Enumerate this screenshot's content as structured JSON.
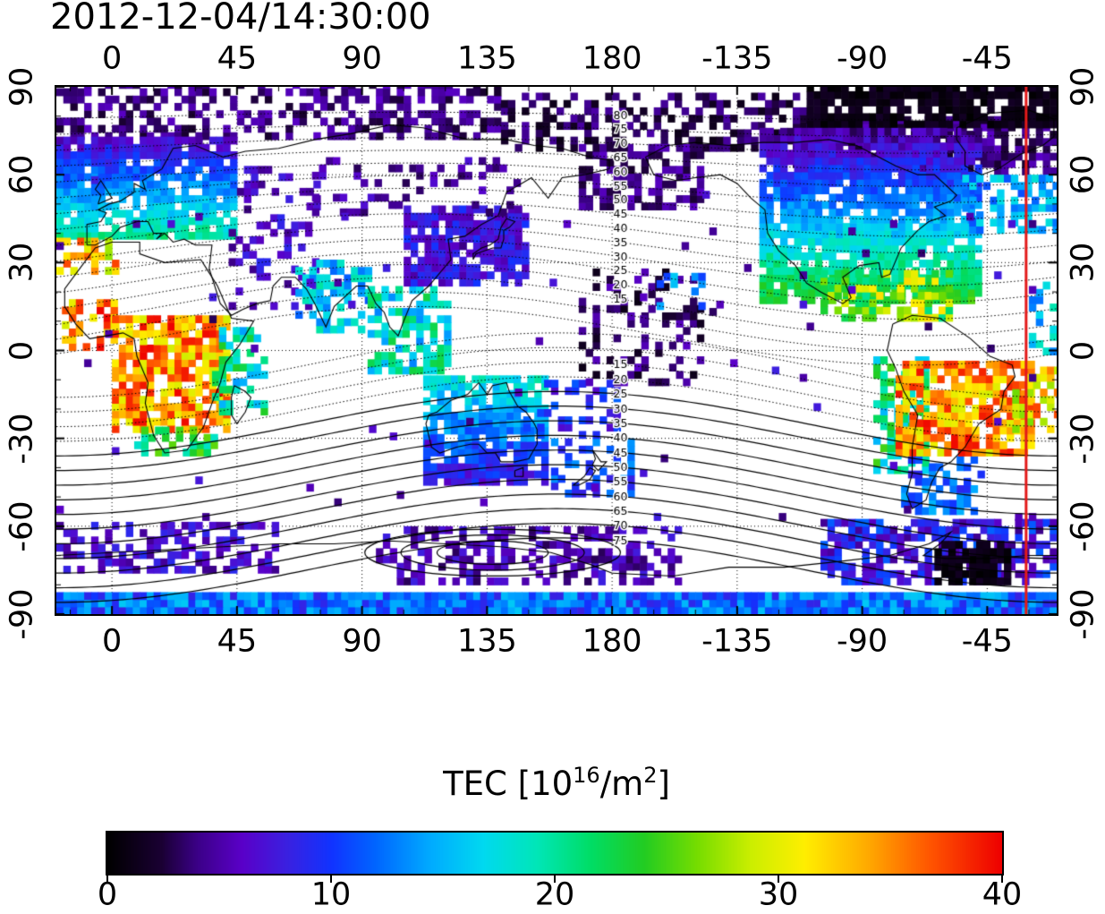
{
  "title": "2012-12-04/14:30:00",
  "axes": {
    "lon_ticks": [
      0,
      45,
      90,
      135,
      180,
      -135,
      -90,
      -45
    ],
    "lat_ticks": [
      90,
      60,
      30,
      0,
      -30,
      -60,
      -90
    ]
  },
  "colorbar": {
    "title_parts": {
      "prefix": "TEC  [10",
      "sup_exp": "16",
      "slash_m": "/m",
      "sup_two": "2",
      "close": "]"
    },
    "ticks": [
      0,
      10,
      20,
      30,
      40
    ],
    "range": [
      0,
      40
    ],
    "stops": [
      [
        0.0,
        "#000000"
      ],
      [
        0.06,
        "#1a0033"
      ],
      [
        0.1,
        "#3b0087"
      ],
      [
        0.15,
        "#5a00c8"
      ],
      [
        0.2,
        "#3b20e0"
      ],
      [
        0.25,
        "#1133ff"
      ],
      [
        0.3,
        "#0066ff"
      ],
      [
        0.36,
        "#00aaff"
      ],
      [
        0.42,
        "#00d9f0"
      ],
      [
        0.48,
        "#00e6b8"
      ],
      [
        0.54,
        "#00dd66"
      ],
      [
        0.6,
        "#22cc22"
      ],
      [
        0.66,
        "#77dd00"
      ],
      [
        0.72,
        "#ccee00"
      ],
      [
        0.78,
        "#ffee00"
      ],
      [
        0.85,
        "#ffaa00"
      ],
      [
        0.92,
        "#ff5500"
      ],
      [
        1.0,
        "#ee0000"
      ]
    ]
  },
  "chart_data": {
    "type": "heatmap",
    "title": "2012-12-04/14:30:00",
    "projection": "equirectangular",
    "lon_ticks": [
      0,
      45,
      90,
      135,
      180,
      -135,
      -90,
      -45
    ],
    "lat_ticks": [
      90,
      60,
      30,
      0,
      -30,
      -60,
      -90
    ],
    "lon_range": [
      -20,
      340
    ],
    "lat_range": [
      -90,
      90
    ],
    "value_name": "TEC",
    "value_unit": "10^16/m^2",
    "value_range": [
      0,
      40
    ],
    "colorbar_label": "TEC [10^16/m^2]",
    "colorbar_ticks": [
      0,
      10,
      20,
      30,
      40
    ],
    "contour_labels_north": [
      80,
      75,
      70,
      65,
      60,
      55,
      50,
      45,
      40,
      35,
      30,
      25,
      20,
      15
    ],
    "contour_labels_south": [
      15,
      20,
      25,
      30,
      35,
      40,
      45,
      50,
      55,
      60,
      65,
      70,
      75
    ],
    "red_line_lon": -31,
    "grid": true,
    "tec_regions": [
      {
        "name": "arctic-band-west",
        "lon": [
          -20,
          140
        ],
        "lat": [
          72,
          90
        ],
        "tec": [
          2,
          6
        ],
        "density": 0.5
      },
      {
        "name": "arctic-band-east",
        "lon": [
          140,
          250
        ],
        "lat": [
          68,
          86
        ],
        "tec": [
          1,
          5
        ],
        "density": 0.45
      },
      {
        "name": "bering-purple",
        "lon": [
          168,
          212
        ],
        "lat": [
          48,
          70
        ],
        "tec": [
          2,
          6
        ],
        "density": 0.55
      },
      {
        "name": "arctic-purple-america",
        "lon": [
          245,
          342
        ],
        "lat": [
          60,
          80
        ],
        "tec": [
          2,
          6
        ],
        "density": 0.7
      },
      {
        "name": "arctic-dark-america",
        "lon": [
          250,
          342
        ],
        "lat": [
          76,
          90
        ],
        "tec": [
          0,
          2
        ],
        "density": 0.85
      },
      {
        "name": "europe-gradient",
        "lon": [
          -20,
          45
        ],
        "lat": [
          38,
          72
        ],
        "grad": {
          "lat0": 38,
          "v0": 20,
          "lat1": 72,
          "v1": 6,
          "jitter": 2
        },
        "density": 0.85
      },
      {
        "name": "russia-scatter",
        "lon": [
          45,
          75
        ],
        "lat": [
          48,
          62
        ],
        "tec": [
          4,
          8
        ],
        "density": 0.3
      },
      {
        "name": "nw-africa-red",
        "lon": [
          -20,
          2
        ],
        "lat": [
          26,
          38
        ],
        "tec": [
          27,
          38
        ],
        "density": 0.55
      },
      {
        "name": "west-africa-red",
        "lon": [
          -18,
          2
        ],
        "lat": [
          0,
          16
        ],
        "tec": [
          29,
          40
        ],
        "density": 0.55
      },
      {
        "name": "africa-main-red",
        "lon": [
          0,
          42
        ],
        "lat": [
          -28,
          10
        ],
        "tec": [
          29,
          40
        ],
        "density": 0.8
      },
      {
        "name": "africa-south-green",
        "lon": [
          8,
          36
        ],
        "lat": [
          -36,
          -26
        ],
        "tec": [
          17,
          26
        ],
        "density": 0.75
      },
      {
        "name": "africa-east-green",
        "lon": [
          36,
          54
        ],
        "lat": [
          -22,
          6
        ],
        "tec": [
          14,
          24
        ],
        "density": 0.45
      },
      {
        "name": "middle-east-sparse",
        "lon": [
          42,
          75
        ],
        "lat": [
          14,
          46
        ],
        "tec": [
          4,
          9
        ],
        "density": 0.3
      },
      {
        "name": "india-cyan",
        "lon": [
          66,
          92
        ],
        "lat": [
          6,
          30
        ],
        "tec": [
          11,
          20
        ],
        "density": 0.55
      },
      {
        "name": "se-asia-green",
        "lon": [
          92,
          122
        ],
        "lat": [
          -8,
          22
        ],
        "tec": [
          13,
          23
        ],
        "density": 0.6
      },
      {
        "name": "east-asia-blue",
        "lon": [
          105,
          148
        ],
        "lat": [
          22,
          48
        ],
        "tec": [
          5,
          10
        ],
        "density": 0.75
      },
      {
        "name": "central-asia-scatter",
        "lon": [
          72,
          145
        ],
        "lat": [
          46,
          66
        ],
        "tec": [
          3,
          7
        ],
        "density": 0.25
      },
      {
        "name": "australia",
        "lon": [
          112,
          156
        ],
        "lat": [
          -46,
          -10
        ],
        "grad": {
          "lat0": -10,
          "v0": 18,
          "lat1": -46,
          "v1": 8,
          "jitter": 2.5
        },
        "density": 0.85
      },
      {
        "name": "new-zealand",
        "lon": [
          158,
          186
        ],
        "lat": [
          -50,
          -32
        ],
        "tec": [
          8,
          14
        ],
        "density": 0.45
      },
      {
        "name": "pacific-sw-scatter",
        "lon": [
          148,
          182
        ],
        "lat": [
          -30,
          -12
        ],
        "tec": [
          6,
          12
        ],
        "density": 0.25
      },
      {
        "name": "pacific-dark",
        "lon": [
          168,
          215
        ],
        "lat": [
          -12,
          26
        ],
        "tec": [
          1,
          6
        ],
        "density": 0.28
      },
      {
        "name": "hawaii-scatter",
        "lon": [
          196,
          212
        ],
        "lat": [
          14,
          26
        ],
        "tec": [
          10,
          18
        ],
        "density": 0.3
      },
      {
        "name": "north-america",
        "lon": [
          233,
          312
        ],
        "lat": [
          16,
          76
        ],
        "grad": {
          "lat0": 16,
          "v0": 24,
          "lat1": 76,
          "v1": 4,
          "jitter": 2
        },
        "density": 0.88
      },
      {
        "name": "caribbean-warm",
        "lon": [
          255,
          302
        ],
        "lat": [
          10,
          26
        ],
        "tec": [
          20,
          32
        ],
        "density": 0.6
      },
      {
        "name": "north-atlantic-cyan",
        "lon": [
          306,
          342
        ],
        "lat": [
          40,
          58
        ],
        "tec": [
          11,
          18
        ],
        "density": 0.55
      },
      {
        "name": "andes-green",
        "lon": [
          274,
          292
        ],
        "lat": [
          -42,
          -2
        ],
        "tec": [
          15,
          25
        ],
        "density": 0.6
      },
      {
        "name": "patagonia-blue",
        "lon": [
          284,
          312
        ],
        "lat": [
          -56,
          -36
        ],
        "tec": [
          8,
          15
        ],
        "density": 0.55
      },
      {
        "name": "south-america-red",
        "lon": [
          282,
          332
        ],
        "lat": [
          -36,
          -4
        ],
        "tec": [
          29,
          40
        ],
        "density": 0.85
      },
      {
        "name": "atlantic-edge-red",
        "lon": [
          324,
          342
        ],
        "lat": [
          -28,
          -6
        ],
        "tec": [
          26,
          38
        ],
        "density": 0.6
      },
      {
        "name": "atlantic-edge-cyan",
        "lon": [
          330,
          342
        ],
        "lat": [
          -4,
          22
        ],
        "tec": [
          12,
          20
        ],
        "density": 0.45
      },
      {
        "name": "antarctic-west",
        "lon": [
          -20,
          60
        ],
        "lat": [
          -76,
          -60
        ],
        "tec": [
          4,
          9
        ],
        "density": 0.45
      },
      {
        "name": "antarctic-mid",
        "lon": [
          95,
          205
        ],
        "lat": [
          -80,
          -60
        ],
        "tec": [
          3,
          8
        ],
        "density": 0.5
      },
      {
        "name": "antarctic-east",
        "lon": [
          255,
          342
        ],
        "lat": [
          -80,
          -58
        ],
        "tec": [
          4,
          12
        ],
        "density": 0.65
      },
      {
        "name": "antarctic-black-spot",
        "lon": [
          296,
          322
        ],
        "lat": [
          -80,
          -66
        ],
        "tec": [
          0,
          2
        ],
        "density": 0.8
      },
      {
        "name": "bottom-band",
        "lon": [
          -20,
          342
        ],
        "lat": [
          -90,
          -84.5
        ],
        "tec": [
          8,
          16
        ],
        "density": 1.0
      },
      {
        "name": "sparse-global",
        "lon": [
          -20,
          342
        ],
        "lat": [
          -58,
          58
        ],
        "tec": [
          3,
          8
        ],
        "density": 0.012
      }
    ]
  }
}
